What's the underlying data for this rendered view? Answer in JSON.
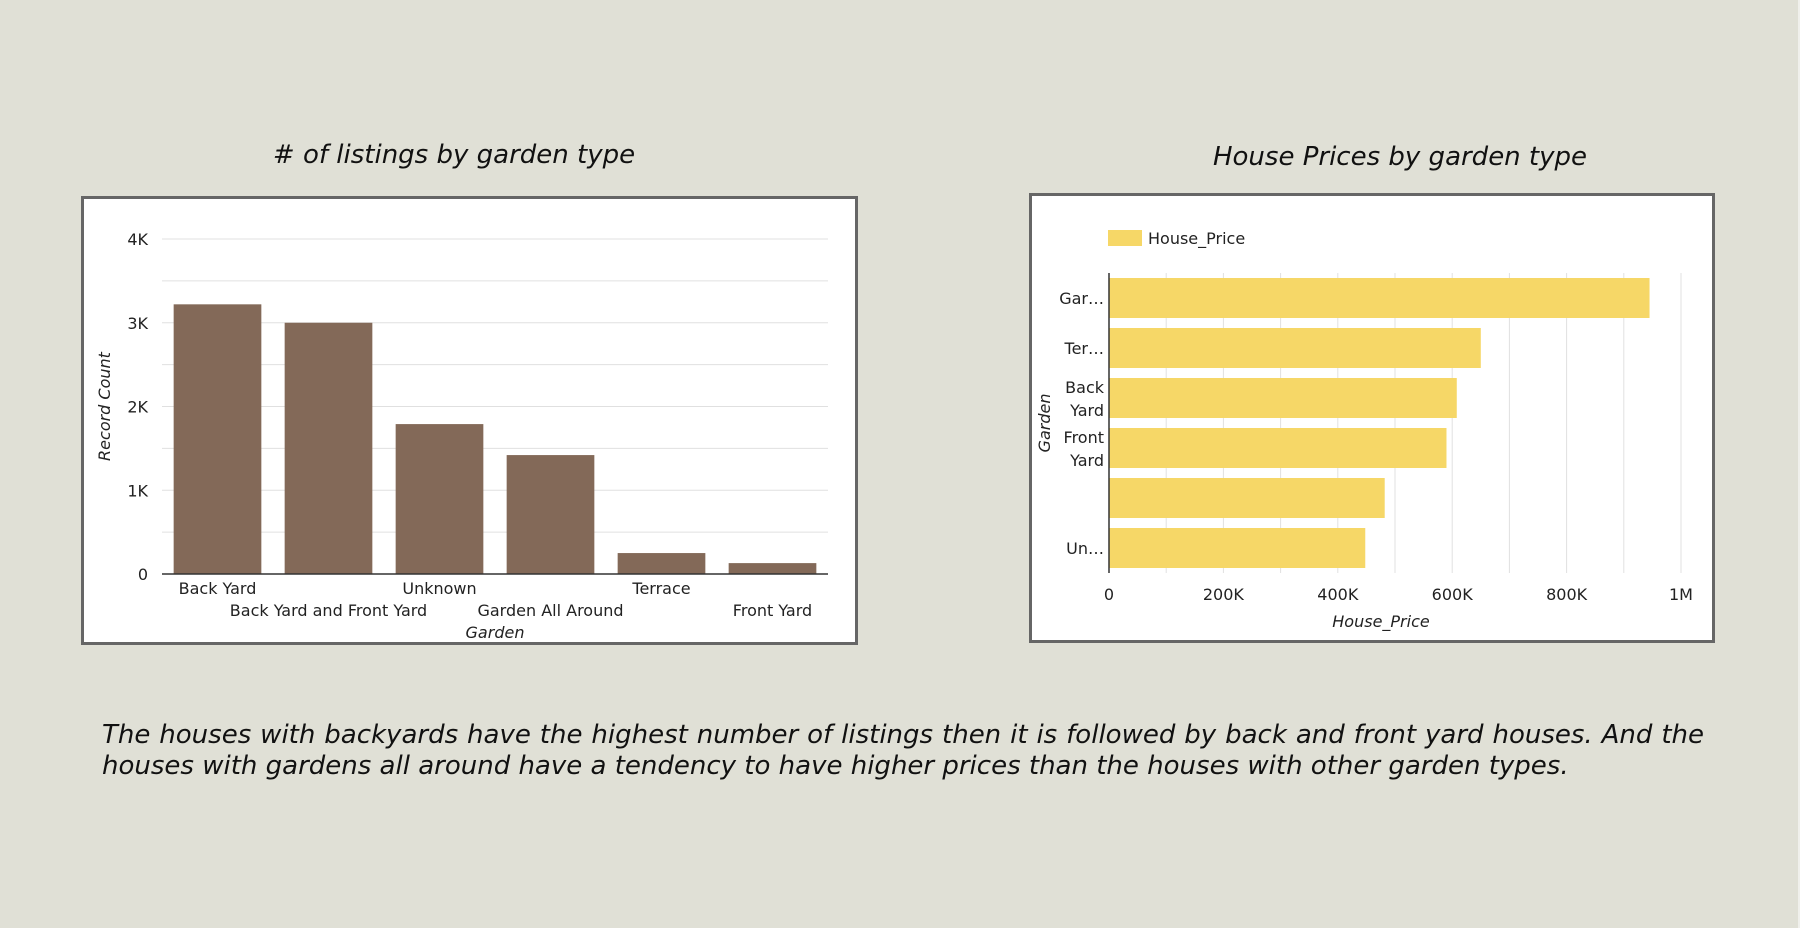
{
  "colors": {
    "background": "#e0e0d6",
    "panel": "#ffffff",
    "panel_border": "#666666",
    "bar_chart_color": "#836958",
    "hbar_chart_color": "#f6d767",
    "gridline": "#e0e0e0"
  },
  "caption": "The houses with backyards have the highest number of listings then it is followed by back and front yard houses. And the houses with gardens all around have a tendency to have higher prices than the houses with other garden types.",
  "chart_data": [
    {
      "type": "bar",
      "title": "# of listings by  garden type",
      "xlabel": "Garden",
      "ylabel": "Record Count",
      "categories": [
        "Back Yard",
        "Back Yard and Front Yard",
        "Unknown",
        "Garden All Around",
        "Terrace",
        "Front Yard"
      ],
      "values": [
        3220,
        3000,
        1790,
        1420,
        250,
        130
      ],
      "ylim": [
        0,
        4000
      ],
      "yticks": [
        0,
        1000,
        2000,
        3000,
        4000
      ],
      "ytick_labels": [
        "0",
        "1K",
        "2K",
        "3K",
        "4K"
      ],
      "grid": true,
      "legend": "none"
    },
    {
      "type": "bar",
      "orientation": "horizontal",
      "title": "House Prices by  garden type",
      "xlabel": "House_Price",
      "ylabel": "Garden",
      "categories": [
        "Gar…",
        "Ter…",
        "Back Yard",
        "Front Yard",
        "",
        "Un…"
      ],
      "series": [
        {
          "name": "House_Price",
          "values": [
            945000,
            650000,
            608000,
            590000,
            482000,
            448000
          ]
        }
      ],
      "xlim": [
        0,
        1000000
      ],
      "xticks": [
        0,
        200000,
        400000,
        600000,
        800000,
        1000000
      ],
      "xtick_labels": [
        "0",
        "200K",
        "400K",
        "600K",
        "800K",
        "1M"
      ],
      "grid": true,
      "legend": "top-left"
    }
  ]
}
